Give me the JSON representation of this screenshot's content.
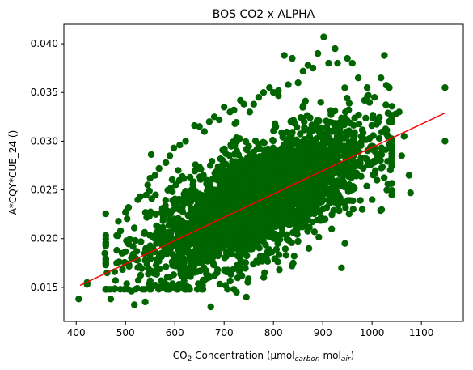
{
  "chart_data": {
    "type": "scatter",
    "title": "BOS CO2 x ALPHA",
    "xlabel": {
      "prefix": "CO",
      "prefix_sub": "2",
      "middle": " Concentration (μmol",
      "sub1": "carbon",
      "between": " mol",
      "sub2": "air",
      "suffix": ")"
    },
    "ylabel": "A*CQY*CUE_24 ()",
    "xlim": [
      375,
      1185
    ],
    "ylim": [
      0.0115,
      0.042
    ],
    "x_ticks": [
      400,
      500,
      600,
      700,
      800,
      900,
      1000,
      1100
    ],
    "y_ticks": [
      0.015,
      0.02,
      0.025,
      0.03,
      0.035,
      0.04
    ],
    "y_tick_labels": [
      "0.015",
      "0.020",
      "0.025",
      "0.030",
      "0.035",
      "0.040"
    ],
    "grid": false,
    "legend": "none",
    "point_color": "#006400",
    "fit_color": "#ff0000",
    "series": [
      {
        "kind": "scatter",
        "points": [
          [
            405,
            0.0138
          ],
          [
            422,
            0.0153
          ],
          [
            422,
            0.0155
          ],
          [
            460,
            0.0195
          ],
          [
            458,
            0.0185
          ],
          [
            460,
            0.0178
          ],
          [
            470,
            0.0138
          ],
          [
            478,
            0.0166
          ],
          [
            482,
            0.0175
          ],
          [
            485,
            0.0203
          ],
          [
            490,
            0.0208
          ],
          [
            493,
            0.0185
          ],
          [
            500,
            0.0227
          ],
          [
            506,
            0.0232
          ],
          [
            512,
            0.0146
          ],
          [
            518,
            0.0132
          ],
          [
            520,
            0.0198
          ],
          [
            525,
            0.024
          ],
          [
            530,
            0.0243
          ],
          [
            538,
            0.0205
          ],
          [
            540,
            0.0135
          ],
          [
            545,
            0.0255
          ],
          [
            550,
            0.0262
          ],
          [
            553,
            0.0152
          ],
          [
            560,
            0.0265
          ],
          [
            568,
            0.0272
          ],
          [
            572,
            0.015
          ],
          [
            575,
            0.0155
          ],
          [
            582,
            0.0278
          ],
          [
            590,
            0.0285
          ],
          [
            598,
            0.0293
          ],
          [
            610,
            0.0296
          ],
          [
            622,
            0.03
          ],
          [
            628,
            0.015
          ],
          [
            640,
            0.0316
          ],
          [
            650,
            0.0315
          ],
          [
            660,
            0.031
          ],
          [
            670,
            0.032
          ],
          [
            673,
            0.013
          ],
          [
            680,
            0.0325
          ],
          [
            690,
            0.0322
          ],
          [
            700,
            0.0335
          ],
          [
            712,
            0.033
          ],
          [
            720,
            0.0332
          ],
          [
            725,
            0.0145
          ],
          [
            733,
            0.0342
          ],
          [
            740,
            0.0338
          ],
          [
            745,
            0.014
          ],
          [
            752,
            0.033
          ],
          [
            760,
            0.0338
          ],
          [
            770,
            0.0345
          ],
          [
            780,
            0.035
          ],
          [
            782,
            0.0165
          ],
          [
            792,
            0.0355
          ],
          [
            800,
            0.035
          ],
          [
            810,
            0.0352
          ],
          [
            812,
            0.0168
          ],
          [
            822,
            0.0388
          ],
          [
            830,
            0.0358
          ],
          [
            838,
            0.0385
          ],
          [
            842,
            0.0182
          ],
          [
            850,
            0.036
          ],
          [
            860,
            0.0372
          ],
          [
            870,
            0.0378
          ],
          [
            872,
            0.019
          ],
          [
            880,
            0.0375
          ],
          [
            890,
            0.039
          ],
          [
            902,
            0.0407
          ],
          [
            905,
            0.022
          ],
          [
            912,
            0.038
          ],
          [
            918,
            0.021
          ],
          [
            925,
            0.0395
          ],
          [
            930,
            0.038
          ],
          [
            938,
            0.017
          ],
          [
            945,
            0.0195
          ],
          [
            950,
            0.0385
          ],
          [
            960,
            0.038
          ],
          [
            972,
            0.0365
          ],
          [
            980,
            0.023
          ],
          [
            990,
            0.0355
          ],
          [
            1000,
            0.024
          ],
          [
            1005,
            0.0345
          ],
          [
            1010,
            0.026
          ],
          [
            1018,
            0.0365
          ],
          [
            1025,
            0.0388
          ],
          [
            1030,
            0.025
          ],
          [
            1035,
            0.0355
          ],
          [
            1040,
            0.0245
          ],
          [
            1048,
            0.0328
          ],
          [
            1055,
            0.033
          ],
          [
            1060,
            0.0285
          ],
          [
            1065,
            0.0305
          ],
          [
            1075,
            0.0265
          ],
          [
            1078,
            0.0247
          ],
          [
            1148,
            0.0355
          ],
          [
            1148,
            0.03
          ]
        ],
        "cloud": {
          "count": 3200,
          "x_mean": 770,
          "x_sd": 110,
          "x_range": [
            460,
            1040
          ],
          "y_intercept": 0.0062,
          "y_slope": 2.32e-05,
          "y_sd": 0.0036,
          "y_range": [
            0.0148,
            0.038
          ]
        }
      },
      {
        "kind": "fit_line",
        "x": [
          408,
          1148
        ],
        "y": [
          0.0152,
          0.0329
        ]
      }
    ]
  }
}
